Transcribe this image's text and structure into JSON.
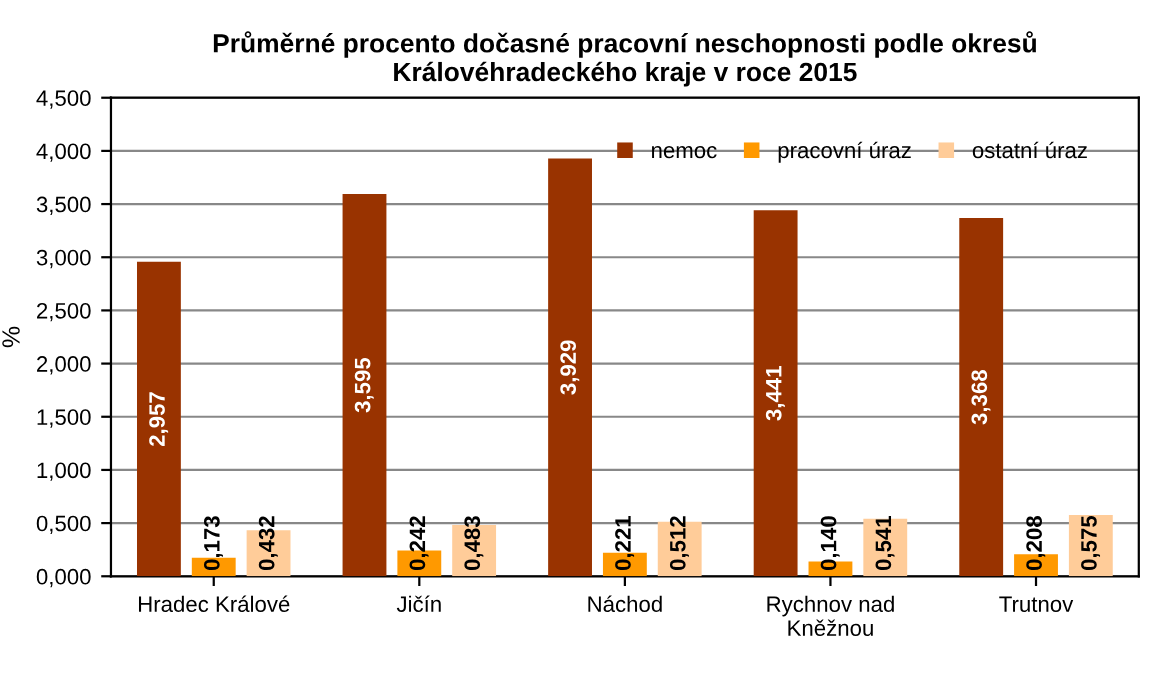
{
  "chart_data": {
    "type": "bar",
    "title": "Průměrné procento dočasné pracovní neschopnosti podle okresů\nKrálovéhradeckého kraje v roce 2015",
    "ylabel": "%",
    "categories": [
      "Hradec Králové",
      "Jičín",
      "Náchod",
      "Rychnov nad\nKněžnou",
      "Trutnov"
    ],
    "series": [
      {
        "name": "nemoc",
        "color": "#993300",
        "values": [
          2.957,
          3.595,
          3.929,
          3.441,
          3.368
        ],
        "value_labels": [
          "2,957",
          "3,595",
          "3,929",
          "3,441",
          "3,368"
        ]
      },
      {
        "name": "pracovní úraz",
        "color": "#ff9900",
        "values": [
          0.173,
          0.242,
          0.221,
          0.14,
          0.208
        ],
        "value_labels": [
          "0,173",
          "0,242",
          "0,221",
          "0,140",
          "0,208"
        ]
      },
      {
        "name": "ostatní úraz",
        "color": "#ffcc99",
        "values": [
          0.432,
          0.483,
          0.512,
          0.541,
          0.575
        ],
        "value_labels": [
          "0,432",
          "0,483",
          "0,512",
          "0,541",
          "0,575"
        ]
      }
    ],
    "ylim": [
      0,
      4.5
    ],
    "yticks": [
      {
        "value": 0,
        "label": "0,000"
      },
      {
        "value": 0.5,
        "label": "0,500"
      },
      {
        "value": 1,
        "label": "1,000"
      },
      {
        "value": 1.5,
        "label": "1,500"
      },
      {
        "value": 2,
        "label": "2,000"
      },
      {
        "value": 2.5,
        "label": "2,500"
      },
      {
        "value": 3,
        "label": "3,000"
      },
      {
        "value": 3.5,
        "label": "3,500"
      },
      {
        "value": 4,
        "label": "4,000"
      },
      {
        "value": 4.5,
        "label": "4,500"
      }
    ],
    "grid": "y",
    "legend": "top right"
  }
}
